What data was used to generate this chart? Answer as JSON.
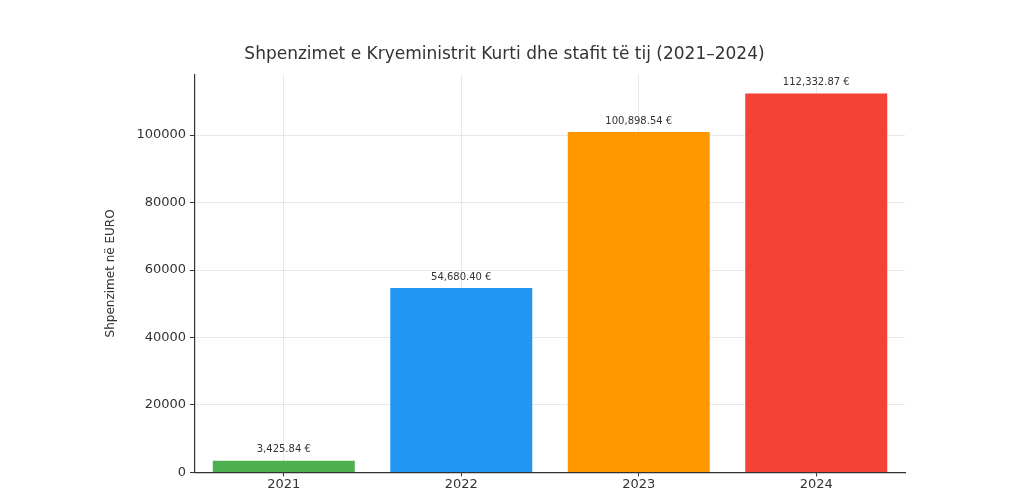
{
  "chart_data": {
    "type": "bar",
    "title": "Shpenzimet e Kryeministrit Kurti dhe stafit të tij (2021–2024)",
    "ylabel": "Shpenzimet në EURO",
    "categories": [
      "2021",
      "2022",
      "2023",
      "2024"
    ],
    "values": [
      3425.84,
      54680.4,
      100898.54,
      112332.87
    ],
    "colors": [
      "#4caf50",
      "#2196f3",
      "#ff9800",
      "#f44336"
    ],
    "value_labels": [
      "3,425.84 €",
      "54,680.40 €",
      "100,898.54 €",
      "112,332.87 €"
    ],
    "ylim": [
      0,
      118000
    ],
    "yticks": [
      0,
      20000,
      40000,
      60000,
      80000,
      100000
    ],
    "grid": true
  }
}
